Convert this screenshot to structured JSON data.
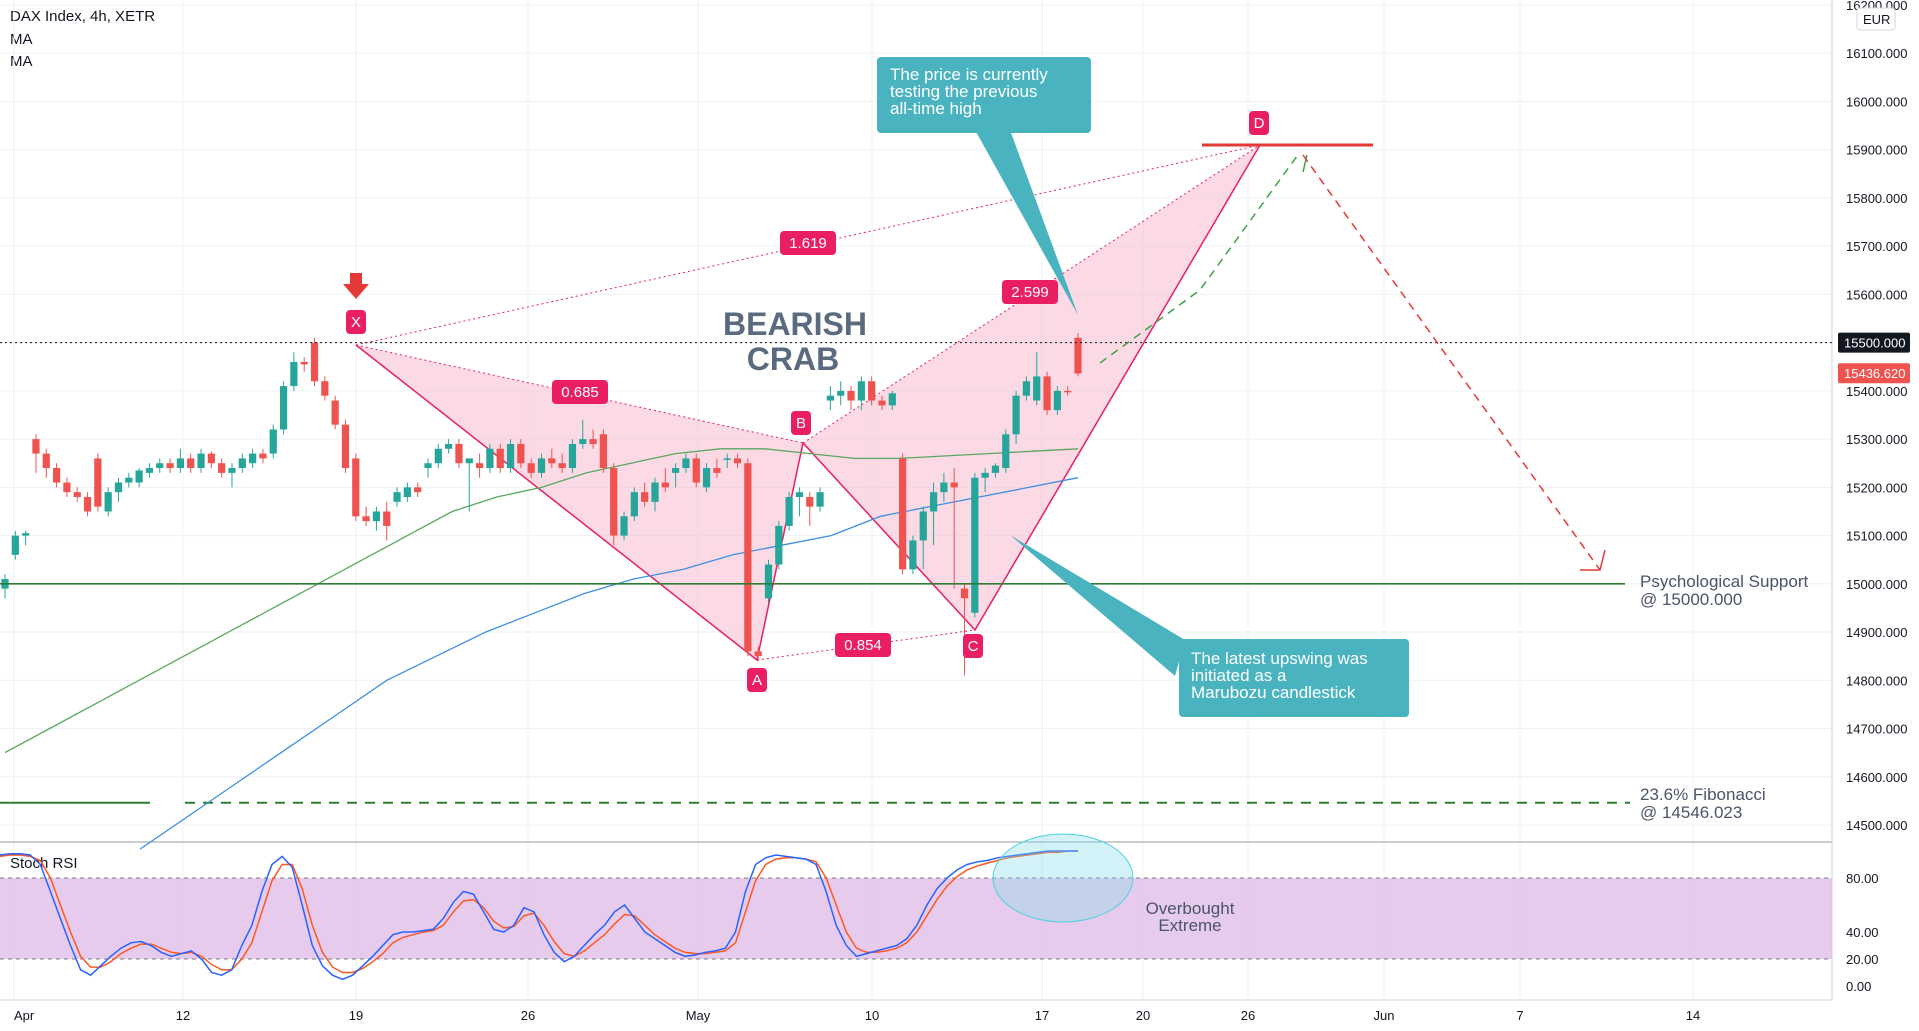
{
  "header": {
    "symbol": "DAX Index, 4h, XETR",
    "indicator_1": "MA",
    "indicator_2": "MA",
    "currency": "EUR"
  },
  "colors": {
    "up": "#26a69a",
    "down": "#ef5350",
    "ma_fast": "#5aa760",
    "ma_slow": "#3d8fe0",
    "pattern_fill": "#f8bbd0",
    "pattern_line": "#e91e63",
    "marker": "#e91e63",
    "support": "#2e7d32",
    "callout": "#4ab3c0",
    "stoch_k": "#2962ff",
    "stoch_d": "#ff5722",
    "stoch_band": "#e1bee7"
  },
  "chart_data": [
    {
      "type": "candlestick",
      "title": "DAX Index, 4h, XETR",
      "xlabels": [
        "Apr",
        "12",
        "19",
        "26",
        "May",
        "10",
        "17",
        "20",
        "26",
        "Jun",
        "7",
        "14"
      ],
      "x_label_dates": [
        "2021-04-01",
        "2021-04-12",
        "2021-04-19",
        "2021-04-26",
        "2021-05-03",
        "2021-05-10",
        "2021-05-17",
        "2021-05-20",
        "2021-05-26",
        "2021-06-01",
        "2021-06-07",
        "2021-06-14"
      ],
      "ylim": [
        14450,
        16200
      ],
      "yticks": [
        "14500.000",
        "14600.000",
        "14700.000",
        "14800.000",
        "14900.000",
        "15000.000",
        "15100.000",
        "15200.000",
        "15300.000",
        "15400.000",
        "15500.000",
        "15600.000",
        "15700.000",
        "15800.000",
        "15900.000",
        "16000.000",
        "16100.000",
        "16200.000"
      ],
      "last_price": "15436.620",
      "level_label": "15500.000",
      "candles": [
        [
          14990,
          15020,
          14970,
          15010
        ],
        [
          15060,
          15110,
          15050,
          15100
        ],
        [
          15100,
          15110,
          15080,
          15105
        ],
        [
          15300,
          15310,
          15230,
          15270
        ],
        [
          15270,
          15280,
          15220,
          15240
        ],
        [
          15240,
          15250,
          15200,
          15210
        ],
        [
          15210,
          15220,
          15180,
          15190
        ],
        [
          15190,
          15200,
          15170,
          15180
        ],
        [
          15180,
          15190,
          15140,
          15150
        ],
        [
          15260,
          15270,
          15150,
          15160
        ],
        [
          15150,
          15200,
          15140,
          15190
        ],
        [
          15190,
          15220,
          15170,
          15210
        ],
        [
          15210,
          15230,
          15200,
          15220
        ],
        [
          15210,
          15240,
          15200,
          15235
        ],
        [
          15230,
          15250,
          15220,
          15240
        ],
        [
          15240,
          15260,
          15230,
          15250
        ],
        [
          15250,
          15260,
          15230,
          15240
        ],
        [
          15240,
          15280,
          15230,
          15260
        ],
        [
          15260,
          15270,
          15230,
          15240
        ],
        [
          15240,
          15280,
          15230,
          15270
        ],
        [
          15270,
          15275,
          15240,
          15250
        ],
        [
          15250,
          15260,
          15220,
          15230
        ],
        [
          15230,
          15250,
          15200,
          15240
        ],
        [
          15240,
          15270,
          15230,
          15260
        ],
        [
          15250,
          15280,
          15240,
          15270
        ],
        [
          15270,
          15280,
          15250,
          15260
        ],
        [
          15270,
          15330,
          15260,
          15320
        ],
        [
          15320,
          15420,
          15310,
          15410
        ],
        [
          15410,
          15480,
          15400,
          15460
        ],
        [
          15460,
          15470,
          15440,
          15455
        ],
        [
          15500,
          15510,
          15410,
          15420
        ],
        [
          15420,
          15430,
          15380,
          15390
        ],
        [
          15380,
          15390,
          15320,
          15330
        ],
        [
          15330,
          15340,
          15230,
          15240
        ],
        [
          15260,
          15270,
          15130,
          15140
        ],
        [
          15140,
          15160,
          15120,
          15130
        ],
        [
          15130,
          15160,
          15110,
          15150
        ],
        [
          15150,
          15170,
          15090,
          15120
        ],
        [
          15170,
          15200,
          15160,
          15190
        ],
        [
          15180,
          15210,
          15170,
          15200
        ],
        [
          15200,
          15210,
          15180,
          15190
        ],
        [
          15240,
          15260,
          15220,
          15250
        ],
        [
          15250,
          15290,
          15240,
          15280
        ],
        [
          15280,
          15300,
          15270,
          15290
        ],
        [
          15290,
          15300,
          15240,
          15250
        ],
        [
          15250,
          15260,
          15150,
          15260
        ],
        [
          15250,
          15270,
          15220,
          15240
        ],
        [
          15240,
          15290,
          15230,
          15280
        ],
        [
          15280,
          15290,
          15230,
          15240
        ],
        [
          15240,
          15300,
          15230,
          15290
        ],
        [
          15290,
          15300,
          15240,
          15250
        ],
        [
          15250,
          15260,
          15220,
          15230
        ],
        [
          15230,
          15270,
          15220,
          15260
        ],
        [
          15260,
          15280,
          15240,
          15250
        ],
        [
          15250,
          15270,
          15230,
          15240
        ],
        [
          15240,
          15300,
          15230,
          15290
        ],
        [
          15290,
          15340,
          15280,
          15300
        ],
        [
          15300,
          15320,
          15280,
          15290
        ],
        [
          15310,
          15320,
          15230,
          15240
        ],
        [
          15240,
          15250,
          15080,
          15100
        ],
        [
          15100,
          15150,
          15090,
          15140
        ],
        [
          15140,
          15200,
          15130,
          15190
        ],
        [
          15190,
          15210,
          15160,
          15170
        ],
        [
          15170,
          15220,
          15150,
          15210
        ],
        [
          15210,
          15240,
          15190,
          15200
        ],
        [
          15230,
          15250,
          15200,
          15240
        ],
        [
          15240,
          15270,
          15230,
          15260
        ],
        [
          15260,
          15270,
          15200,
          15210
        ],
        [
          15200,
          15250,
          15190,
          15240
        ],
        [
          15240,
          15260,
          15220,
          15230
        ],
        [
          15260,
          15270,
          15240,
          15260
        ],
        [
          15260,
          15270,
          15240,
          15250
        ],
        [
          15250,
          15260,
          14850,
          14860
        ],
        [
          14860,
          14870,
          14840,
          14850
        ],
        [
          14970,
          15050,
          14960,
          15040
        ],
        [
          15040,
          15130,
          15030,
          15120
        ],
        [
          15120,
          15190,
          15110,
          15180
        ],
        [
          15180,
          15200,
          15140,
          15190
        ],
        [
          15180,
          15190,
          15120,
          15160
        ],
        [
          15160,
          15200,
          15150,
          15190
        ],
        [
          15380,
          15410,
          15360,
          15390
        ],
        [
          15390,
          15420,
          15370,
          15400
        ],
        [
          15400,
          15410,
          15360,
          15380
        ],
        [
          15380,
          15430,
          15360,
          15420
        ],
        [
          15420,
          15430,
          15370,
          15380
        ],
        [
          15380,
          15390,
          15360,
          15370
        ],
        [
          15370,
          15400,
          15360,
          15395
        ],
        [
          15260,
          15270,
          15020,
          15030
        ],
        [
          15030,
          15100,
          15020,
          15090
        ],
        [
          15090,
          15160,
          15030,
          15150
        ],
        [
          15150,
          15210,
          15080,
          15190
        ],
        [
          15190,
          15230,
          15170,
          15210
        ],
        [
          15210,
          15240,
          14990,
          15200
        ],
        [
          14990,
          15000,
          14810,
          14970
        ],
        [
          14940,
          15230,
          14930,
          15220
        ],
        [
          15220,
          15240,
          15190,
          15230
        ],
        [
          15230,
          15250,
          15220,
          15245
        ],
        [
          15240,
          15320,
          15230,
          15310
        ],
        [
          15310,
          15400,
          15290,
          15390
        ],
        [
          15390,
          15430,
          15380,
          15420
        ],
        [
          15380,
          15480,
          15370,
          15430
        ],
        [
          15430,
          15440,
          15350,
          15360
        ],
        [
          15360,
          15410,
          15350,
          15400
        ],
        [
          15400,
          15410,
          15390,
          15398
        ],
        [
          15510,
          15520,
          15430,
          15436
        ]
      ],
      "ma_fast": [
        14650,
        14700,
        14750,
        14800,
        14850,
        14900,
        14950,
        15000,
        15050,
        15100,
        15150,
        15180,
        15200,
        15230,
        15250,
        15270,
        15280,
        15280,
        15270,
        15260,
        15260,
        15265,
        15270,
        15275,
        15280
      ],
      "ma_slow": [
        14450,
        14520,
        14590,
        14660,
        14730,
        14800,
        14850,
        14900,
        14940,
        14980,
        15010,
        15030,
        15060,
        15080,
        15100,
        15140,
        15160,
        15180,
        15200,
        15220
      ],
      "pattern": {
        "name": "BEARISH CRAB",
        "points": [
          {
            "label": "X",
            "price": 15500
          },
          {
            "label": "A",
            "price": 14840
          },
          {
            "label": "B",
            "price": 15300
          },
          {
            "label": "C",
            "price": 14900
          },
          {
            "label": "D",
            "price": 15910
          }
        ],
        "ratios": [
          "1.619",
          "0.685",
          "2.599",
          "0.854"
        ]
      },
      "projection": [
        15510,
        15890,
        15020
      ],
      "levels": [
        {
          "name": "Psychological Support",
          "label": "Psychological Support",
          "value_label": "@ 15000.000",
          "value": 15000
        },
        {
          "name": "23.6% Fibonacci",
          "label": "23.6% Fibonacci",
          "value_label": "@ 14546.023",
          "value": 14546.023
        }
      ],
      "annotations": [
        "The price is currently testing the previous all-time high",
        "The latest upswing was initiated as a Marubozu candlestick"
      ]
    },
    {
      "type": "line",
      "title": "Stoch RSI",
      "ylim": [
        0,
        100
      ],
      "yticks": [
        "0.00",
        "20.00",
        "40.00",
        "80.00"
      ],
      "band": [
        20,
        80
      ],
      "band_label": "Overbought Extreme",
      "series": [
        {
          "values": [
            97,
            98,
            98,
            97,
            90,
            70,
            50,
            30,
            12,
            8,
            15,
            22,
            28,
            32,
            33,
            30,
            25,
            22,
            24,
            26,
            20,
            10,
            8,
            12,
            30,
            45,
            70,
            90,
            96,
            88,
            60,
            30,
            15,
            8,
            5,
            8,
            15,
            22,
            30,
            38,
            40,
            40,
            41,
            42,
            50,
            62,
            70,
            68,
            55,
            42,
            40,
            45,
            58,
            55,
            38,
            25,
            18,
            22,
            30,
            38,
            45,
            55,
            60,
            50,
            40,
            35,
            30,
            25,
            22,
            23,
            25,
            26,
            28,
            40,
            70,
            90,
            95,
            97,
            96,
            95,
            94,
            90,
            70,
            45,
            30,
            22,
            24,
            26,
            28,
            30,
            35,
            45,
            60,
            72,
            80,
            86,
            90,
            92,
            93,
            95,
            96,
            97,
            98,
            99,
            100,
            100,
            100,
            100
          ]
        },
        {
          "values": [
            96,
            97,
            97,
            96,
            93,
            80,
            60,
            40,
            22,
            14,
            14,
            18,
            24,
            28,
            31,
            31,
            28,
            25,
            24,
            25,
            22,
            16,
            12,
            12,
            20,
            32,
            55,
            78,
            90,
            90,
            72,
            45,
            25,
            14,
            10,
            10,
            13,
            18,
            24,
            32,
            36,
            38,
            40,
            41,
            45,
            55,
            63,
            64,
            58,
            48,
            43,
            44,
            52,
            54,
            45,
            33,
            24,
            22,
            26,
            32,
            38,
            46,
            53,
            52,
            45,
            38,
            33,
            28,
            25,
            24,
            24,
            25,
            26,
            32,
            55,
            78,
            90,
            94,
            95,
            95,
            94,
            92,
            80,
            60,
            40,
            28,
            25,
            25,
            26,
            28,
            32,
            40,
            52,
            64,
            74,
            81,
            86,
            89,
            91,
            93,
            95,
            96,
            97,
            98,
            99,
            99,
            100,
            100
          ]
        }
      ]
    }
  ]
}
